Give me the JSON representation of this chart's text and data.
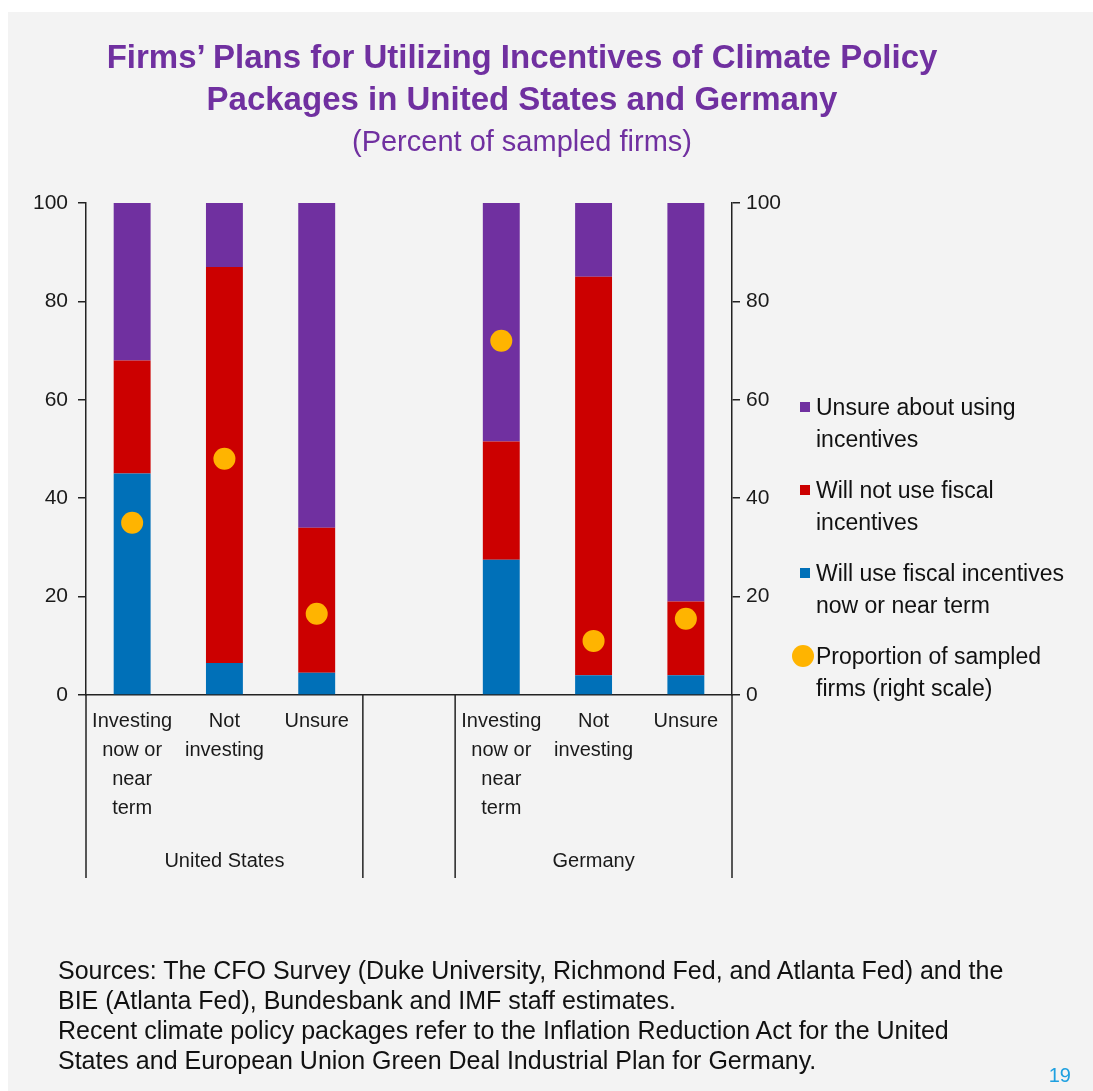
{
  "chart_data": {
    "type": "bar",
    "title": "Firms’ Plans for Utilizing Incentives of Climate Policy Packages in United States and Germany",
    "subtitle": "(Percent of sampled firms)",
    "categories": [
      "Investing now or near term",
      "Not investing",
      "Unsure",
      null,
      "Investing now or near term",
      "Not investing",
      "Unsure"
    ],
    "stacked": true,
    "series": [
      {
        "name": "Will use fiscal incentives now or near term",
        "color": "#0070b8",
        "values": [
          45,
          6.5,
          4.5,
          null,
          27.5,
          4,
          4
        ]
      },
      {
        "name": "Will not use fiscal incentives",
        "color": "#cc0000",
        "values": [
          23,
          80.5,
          29.5,
          null,
          24,
          81,
          15
        ]
      },
      {
        "name": "Unsure about using incentives",
        "color": "#7030a0",
        "values": [
          32,
          13,
          66,
          null,
          48.5,
          15,
          81
        ]
      },
      {
        "name": "Proportion of sampled firms (right scale)",
        "type": "scatter",
        "axis": "y2",
        "marker": "circle",
        "color": "#ffb400",
        "values": [
          35,
          48,
          16.5,
          null,
          72,
          11,
          15.5
        ]
      }
    ],
    "ylim": [
      0,
      100
    ],
    "yticks": [
      0,
      20,
      40,
      60,
      80,
      100
    ],
    "y2lim": [
      0,
      100
    ],
    "y2ticks": [
      0,
      20,
      40,
      60,
      80,
      100
    ],
    "legend": "right",
    "grid": false,
    "annotations": [
      "United States",
      "Germany",
      "Sources: The CFO Survey (Duke University, Richmond Fed, and Atlanta Fed) and the BIE (Atlanta Fed), Bundesbank and IMF staff estimates.",
      "Recent climate policy packages refer to the Inflation Reduction Act for the United States and European Union Green Deal Industrial Plan for Germany.",
      "19"
    ]
  }
}
